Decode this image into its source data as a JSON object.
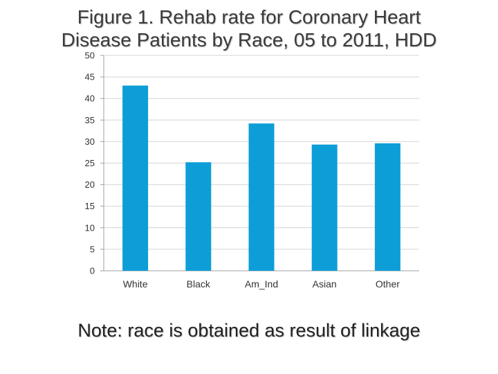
{
  "title_line1": "Figure 1. Rehab rate for Coronary Heart",
  "title_line2": "Disease Patients by Race, 05 to 2011, HDD",
  "note": "Note: race is obtained as result of linkage",
  "colors": {
    "bar": "#0d9ed8",
    "grid": "#d4d4d4",
    "axis": "#a0a0a0",
    "tick_text": "#333333"
  },
  "chart_data": {
    "type": "bar",
    "categories": [
      "White",
      "Black",
      "Am_Ind",
      "Asian",
      "Other"
    ],
    "values": [
      43,
      25.2,
      34.2,
      29.3,
      29.6
    ],
    "ylim": [
      0,
      50
    ],
    "yticks": [
      0,
      5,
      10,
      15,
      20,
      25,
      30,
      35,
      40,
      45,
      50
    ],
    "grid": true,
    "legend": "none"
  }
}
